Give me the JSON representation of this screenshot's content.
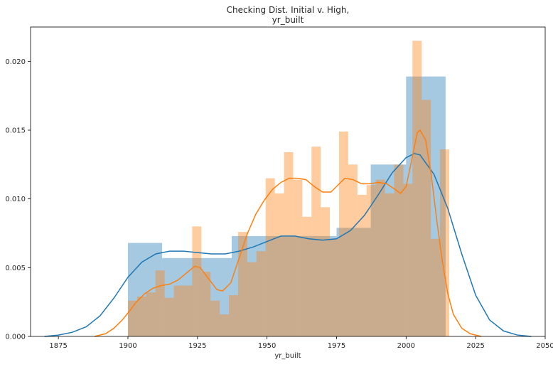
{
  "chart_data": {
    "type": "histogram",
    "title_line1": "Checking Dist. Initial v. High,",
    "title_line2": "yr_built",
    "xlabel": "yr_built",
    "ylabel": "",
    "xlim": [
      1865,
      2050
    ],
    "ylim": [
      0,
      0.0225
    ],
    "xticks": [
      1875,
      1900,
      1925,
      1950,
      1975,
      2000,
      2025,
      2050
    ],
    "yticks": [
      0.0,
      0.005,
      0.01,
      0.015,
      0.02
    ],
    "grid": false,
    "legend": "none",
    "series": [
      {
        "color": "#1f77b4",
        "bar_alpha": 0.4,
        "bins": [
          {
            "x0": 1900,
            "x1": 1912.3,
            "h": 0.0068
          },
          {
            "x0": 1912.3,
            "x1": 1925,
            "h": 0.0057
          },
          {
            "x0": 1925,
            "x1": 1937.3,
            "h": 0.0057
          },
          {
            "x0": 1937.3,
            "x1": 1950,
            "h": 0.0073
          },
          {
            "x0": 1950,
            "x1": 1962.3,
            "h": 0.0073
          },
          {
            "x0": 1962.3,
            "x1": 1975,
            "h": 0.0073
          },
          {
            "x0": 1975,
            "x1": 1987.3,
            "h": 0.0079
          },
          {
            "x0": 1987.3,
            "x1": 2000,
            "h": 0.0125
          },
          {
            "x0": 2000,
            "x1": 2014.2,
            "h": 0.0189
          }
        ],
        "kde": [
          [
            1870,
            0.0
          ],
          [
            1875,
            0.0001
          ],
          [
            1880,
            0.0003
          ],
          [
            1885,
            0.0007
          ],
          [
            1890,
            0.0015
          ],
          [
            1895,
            0.0028
          ],
          [
            1900,
            0.0043
          ],
          [
            1905,
            0.0054
          ],
          [
            1910,
            0.006
          ],
          [
            1915,
            0.0062
          ],
          [
            1920,
            0.0062
          ],
          [
            1925,
            0.0061
          ],
          [
            1930,
            0.006
          ],
          [
            1935,
            0.006
          ],
          [
            1940,
            0.0062
          ],
          [
            1945,
            0.0065
          ],
          [
            1950,
            0.0069
          ],
          [
            1955,
            0.0073
          ],
          [
            1960,
            0.0073
          ],
          [
            1965,
            0.0071
          ],
          [
            1970,
            0.007
          ],
          [
            1975,
            0.0071
          ],
          [
            1980,
            0.0077
          ],
          [
            1985,
            0.0088
          ],
          [
            1990,
            0.0103
          ],
          [
            1995,
            0.0119
          ],
          [
            2000,
            0.013
          ],
          [
            2003,
            0.0133
          ],
          [
            2005,
            0.0132
          ],
          [
            2010,
            0.0118
          ],
          [
            2015,
            0.0093
          ],
          [
            2020,
            0.006
          ],
          [
            2025,
            0.003
          ],
          [
            2030,
            0.0012
          ],
          [
            2035,
            0.0004
          ],
          [
            2040,
            0.0001
          ],
          [
            2045,
            0.0
          ]
        ]
      },
      {
        "color": "#ff7f0e",
        "bar_alpha": 0.4,
        "bins": [
          {
            "x0": 1900.0,
            "x1": 1903.3,
            "h": 0.0026
          },
          {
            "x0": 1903.3,
            "x1": 1906.6,
            "h": 0.0029
          },
          {
            "x0": 1906.6,
            "x1": 1909.9,
            "h": 0.0032
          },
          {
            "x0": 1909.9,
            "x1": 1913.2,
            "h": 0.0048
          },
          {
            "x0": 1913.2,
            "x1": 1916.5,
            "h": 0.0028
          },
          {
            "x0": 1916.5,
            "x1": 1919.8,
            "h": 0.0037
          },
          {
            "x0": 1919.8,
            "x1": 1923.1,
            "h": 0.0037
          },
          {
            "x0": 1923.1,
            "x1": 1926.4,
            "h": 0.008
          },
          {
            "x0": 1926.4,
            "x1": 1929.7,
            "h": 0.0047
          },
          {
            "x0": 1929.7,
            "x1": 1933.0,
            "h": 0.0026
          },
          {
            "x0": 1933.0,
            "x1": 1936.3,
            "h": 0.0016
          },
          {
            "x0": 1936.3,
            "x1": 1939.6,
            "h": 0.003
          },
          {
            "x0": 1939.6,
            "x1": 1942.9,
            "h": 0.0076
          },
          {
            "x0": 1942.9,
            "x1": 1946.2,
            "h": 0.0054
          },
          {
            "x0": 1946.2,
            "x1": 1949.5,
            "h": 0.0062
          },
          {
            "x0": 1949.5,
            "x1": 1952.8,
            "h": 0.0115
          },
          {
            "x0": 1952.8,
            "x1": 1956.1,
            "h": 0.0104
          },
          {
            "x0": 1956.1,
            "x1": 1959.4,
            "h": 0.0134
          },
          {
            "x0": 1959.4,
            "x1": 1962.7,
            "h": 0.0114
          },
          {
            "x0": 1962.7,
            "x1": 1966.0,
            "h": 0.0087
          },
          {
            "x0": 1966.0,
            "x1": 1969.3,
            "h": 0.0138
          },
          {
            "x0": 1969.3,
            "x1": 1972.6,
            "h": 0.0094
          },
          {
            "x0": 1972.6,
            "x1": 1975.9,
            "h": 0.0071
          },
          {
            "x0": 1975.9,
            "x1": 1979.2,
            "h": 0.0149
          },
          {
            "x0": 1979.2,
            "x1": 1982.5,
            "h": 0.0125
          },
          {
            "x0": 1982.5,
            "x1": 1985.8,
            "h": 0.0103
          },
          {
            "x0": 1985.8,
            "x1": 1989.1,
            "h": 0.011
          },
          {
            "x0": 1989.1,
            "x1": 1992.4,
            "h": 0.0114
          },
          {
            "x0": 1992.4,
            "x1": 1995.7,
            "h": 0.0104
          },
          {
            "x0": 1995.7,
            "x1": 1999.0,
            "h": 0.0125
          },
          {
            "x0": 1999.0,
            "x1": 2002.3,
            "h": 0.0111
          },
          {
            "x0": 2002.3,
            "x1": 2005.6,
            "h": 0.0215
          },
          {
            "x0": 2005.6,
            "x1": 2008.9,
            "h": 0.0172
          },
          {
            "x0": 2008.9,
            "x1": 2012.2,
            "h": 0.0071
          },
          {
            "x0": 2012.2,
            "x1": 2015.5,
            "h": 0.0136
          }
        ],
        "kde": [
          [
            1888,
            0.0
          ],
          [
            1892,
            0.0002
          ],
          [
            1895,
            0.0006
          ],
          [
            1898,
            0.0012
          ],
          [
            1900,
            0.0017
          ],
          [
            1903,
            0.0025
          ],
          [
            1906,
            0.0031
          ],
          [
            1909,
            0.0035
          ],
          [
            1912,
            0.0037
          ],
          [
            1915,
            0.0038
          ],
          [
            1918,
            0.0041
          ],
          [
            1921,
            0.0046
          ],
          [
            1924,
            0.0051
          ],
          [
            1926,
            0.005
          ],
          [
            1929,
            0.0042
          ],
          [
            1932,
            0.0034
          ],
          [
            1934,
            0.0033
          ],
          [
            1937,
            0.0039
          ],
          [
            1940,
            0.0057
          ],
          [
            1943,
            0.0075
          ],
          [
            1946,
            0.0089
          ],
          [
            1949,
            0.0099
          ],
          [
            1952,
            0.0107
          ],
          [
            1955,
            0.0112
          ],
          [
            1958,
            0.0115
          ],
          [
            1961,
            0.0115
          ],
          [
            1964,
            0.0114
          ],
          [
            1967,
            0.0109
          ],
          [
            1970,
            0.0105
          ],
          [
            1973,
            0.0105
          ],
          [
            1976,
            0.0111
          ],
          [
            1978,
            0.0115
          ],
          [
            1981,
            0.0114
          ],
          [
            1984,
            0.0111
          ],
          [
            1987,
            0.0111
          ],
          [
            1990,
            0.0112
          ],
          [
            1993,
            0.0111
          ],
          [
            1996,
            0.0107
          ],
          [
            1998,
            0.0104
          ],
          [
            2000,
            0.0109
          ],
          [
            2002,
            0.0128
          ],
          [
            2004,
            0.0148
          ],
          [
            2005,
            0.015
          ],
          [
            2007,
            0.0143
          ],
          [
            2009,
            0.0118
          ],
          [
            2011,
            0.0085
          ],
          [
            2013,
            0.0055
          ],
          [
            2015,
            0.0031
          ],
          [
            2017,
            0.0016
          ],
          [
            2020,
            0.0006
          ],
          [
            2023,
            0.0002
          ],
          [
            2027,
            0.0
          ]
        ]
      }
    ]
  }
}
